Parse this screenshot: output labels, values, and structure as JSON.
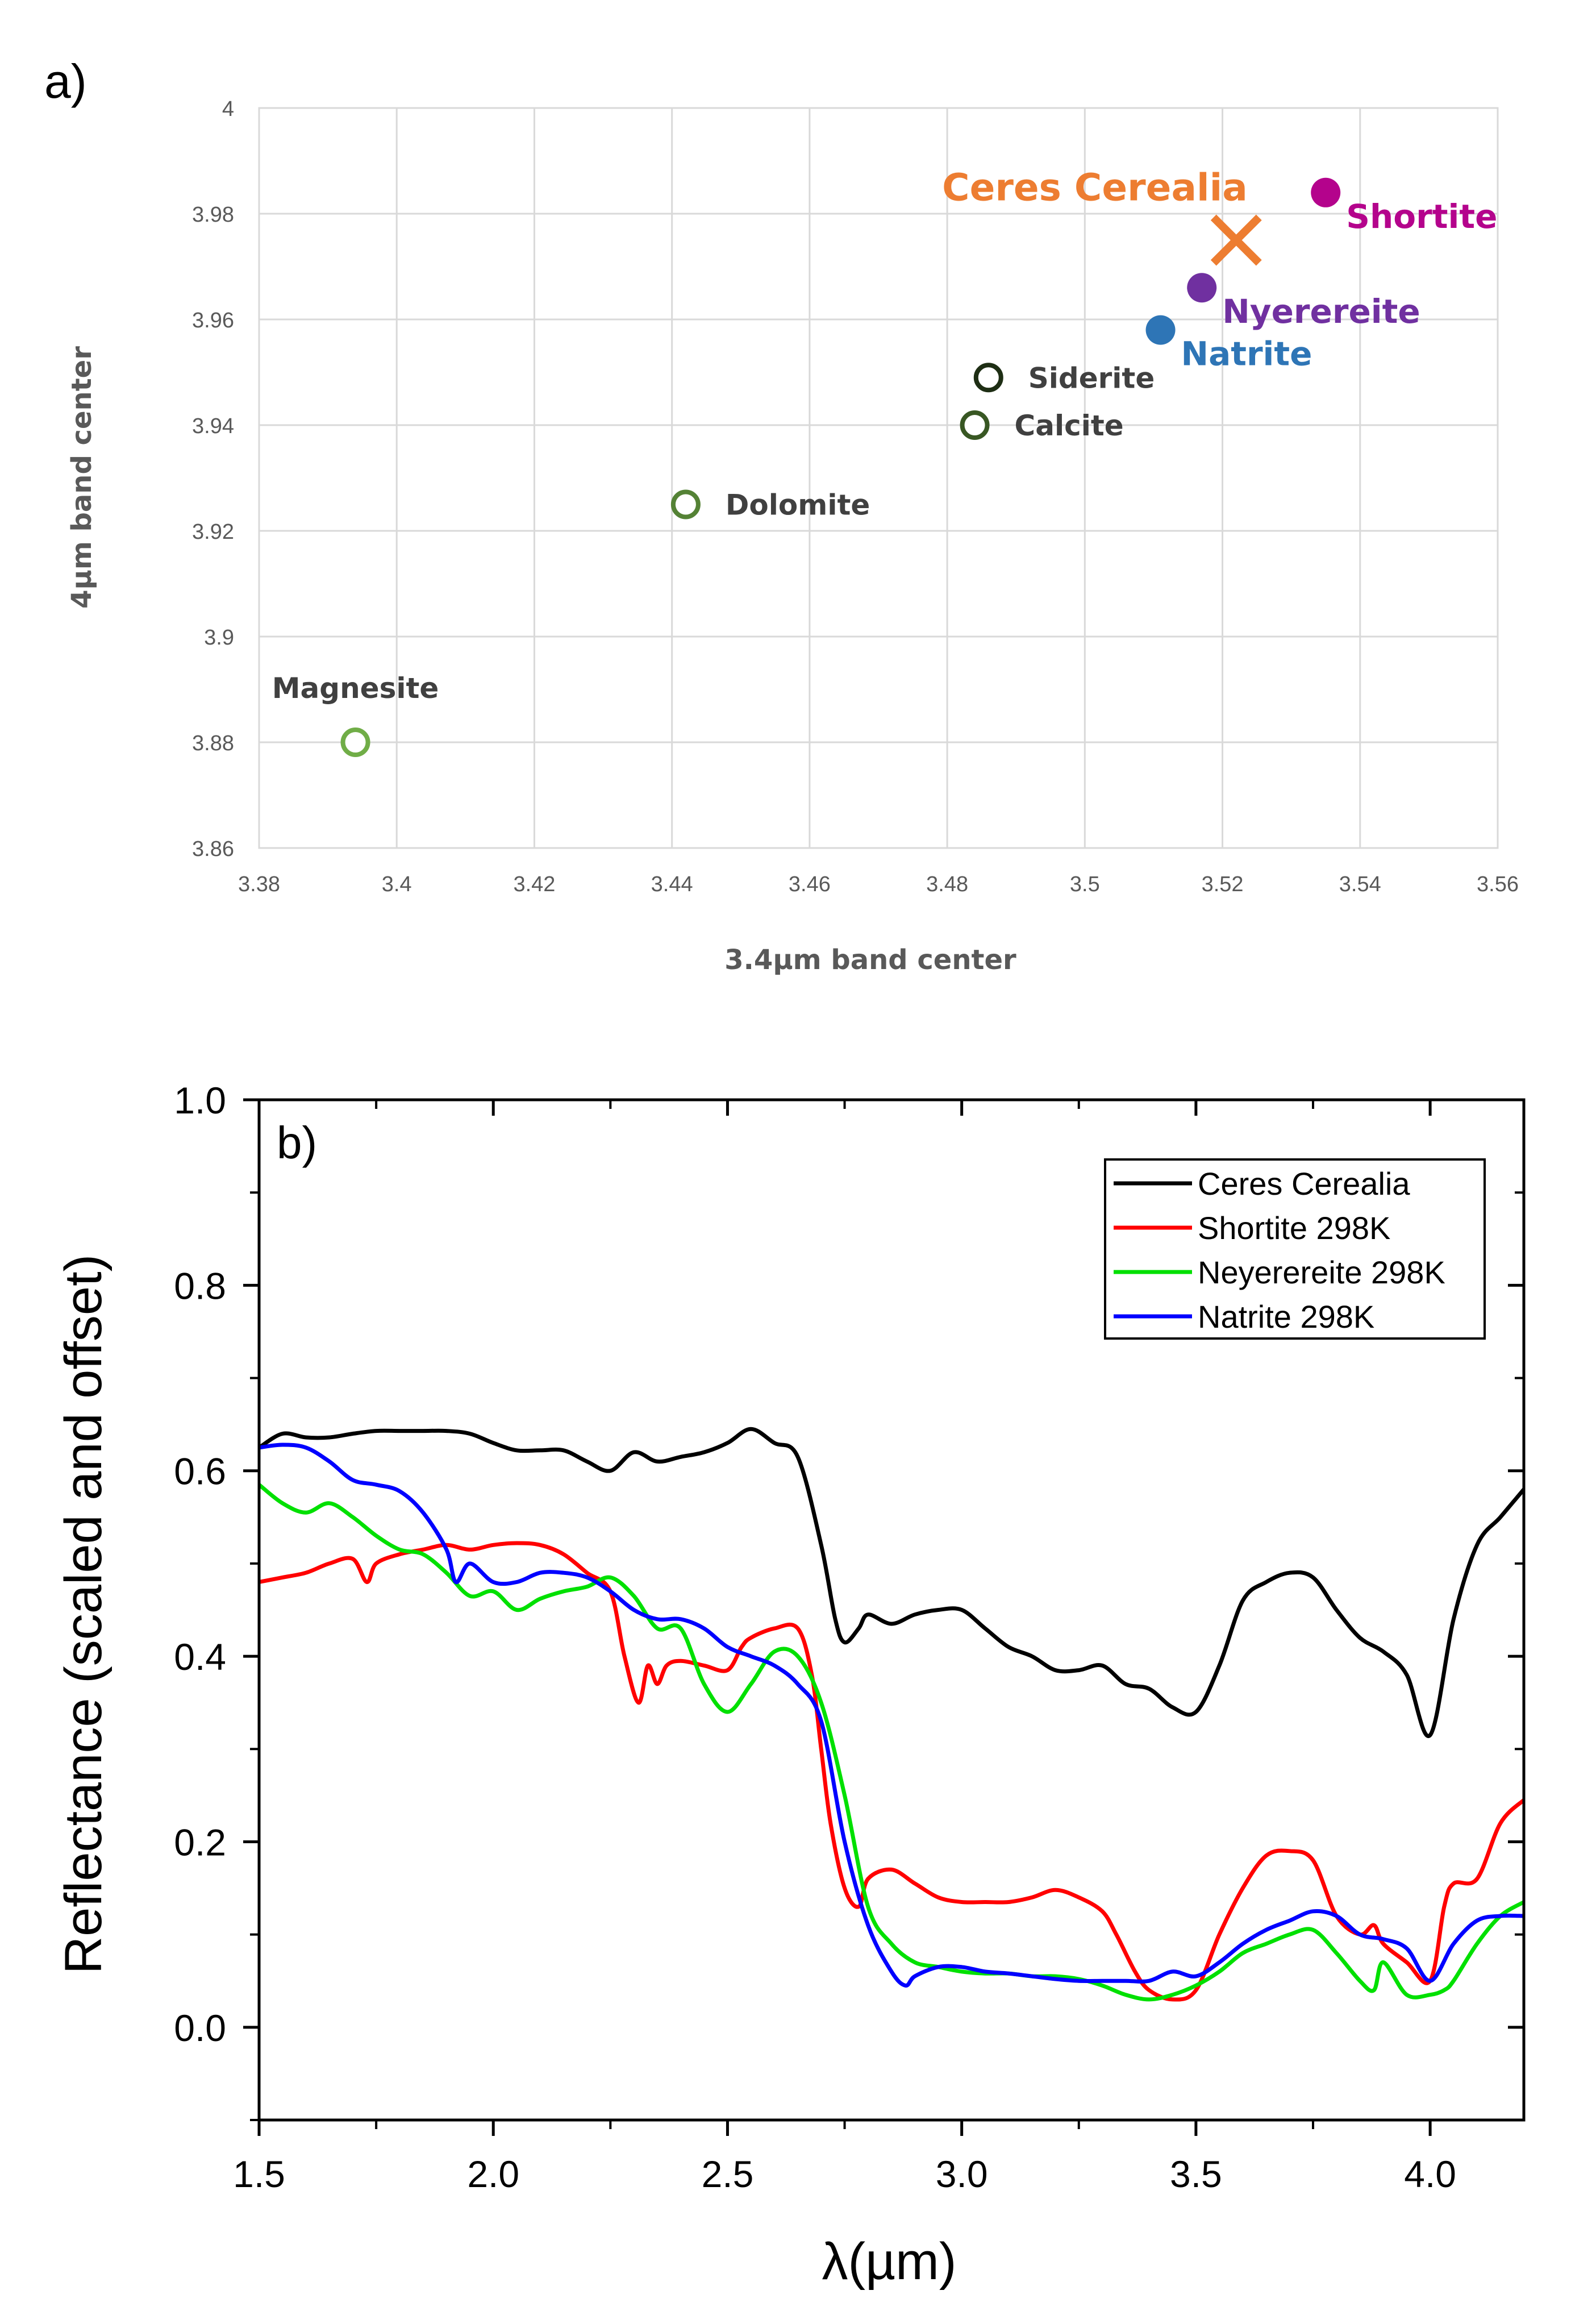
{
  "chart_data": [
    {
      "type": "scatter",
      "panel_label": "a)",
      "title": "",
      "xlabel": "3.4µm band center",
      "ylabel": "4µm band center",
      "xlim": [
        3.38,
        3.56
      ],
      "ylim": [
        3.86,
        4.0
      ],
      "grid": true,
      "x_ticks": [
        {
          "value": 3.38,
          "label": "3.38"
        },
        {
          "value": 3.4,
          "label": "3.4"
        },
        {
          "value": 3.42,
          "label": "3.42"
        },
        {
          "value": 3.44,
          "label": "3.44"
        },
        {
          "value": 3.46,
          "label": "3.46"
        },
        {
          "value": 3.48,
          "label": "3.48"
        },
        {
          "value": 3.5,
          "label": "3.5"
        },
        {
          "value": 3.52,
          "label": "3.52"
        },
        {
          "value": 3.54,
          "label": "3.54"
        },
        {
          "value": 3.56,
          "label": "3.56"
        }
      ],
      "y_ticks": [
        {
          "value": 3.86,
          "label": "3.86"
        },
        {
          "value": 3.88,
          "label": "3.88"
        },
        {
          "value": 3.9,
          "label": "3.9"
        },
        {
          "value": 3.92,
          "label": "3.92"
        },
        {
          "value": 3.94,
          "label": "3.94"
        },
        {
          "value": 3.96,
          "label": "3.96"
        },
        {
          "value": 3.98,
          "label": "3.98"
        },
        {
          "value": 4.0,
          "label": "4"
        }
      ],
      "points": [
        {
          "name": "Magnesite",
          "x": 3.394,
          "y": 3.88,
          "marker": "open-circle",
          "color": "#70AD47",
          "label_color": "#404040",
          "label_pos": "above"
        },
        {
          "name": "Dolomite",
          "x": 3.442,
          "y": 3.925,
          "marker": "open-circle",
          "color": "#548235",
          "label_color": "#404040",
          "label_pos": "right"
        },
        {
          "name": "Calcite",
          "x": 3.484,
          "y": 3.94,
          "marker": "open-circle",
          "color": "#385723",
          "label_color": "#404040",
          "label_pos": "right"
        },
        {
          "name": "Siderite",
          "x": 3.486,
          "y": 3.949,
          "marker": "open-circle",
          "color": "#1E2E14",
          "label_color": "#404040",
          "label_pos": "right"
        },
        {
          "name": "Natrite",
          "x": 3.511,
          "y": 3.958,
          "marker": "filled-circle",
          "color": "#2E75B6",
          "label_color": "#2E75B6",
          "label_pos": "lower-right"
        },
        {
          "name": "Nyerereite",
          "x": 3.517,
          "y": 3.966,
          "marker": "filled-circle",
          "color": "#7030A0",
          "label_color": "#7030A0",
          "label_pos": "lower-right"
        },
        {
          "name": "Ceres Cerealia",
          "x": 3.522,
          "y": 3.975,
          "marker": "cross",
          "color": "#ED7D31",
          "label_color": "#ED7D31",
          "label_pos": "upper-left"
        },
        {
          "name": "Shortite",
          "x": 3.535,
          "y": 3.984,
          "marker": "filled-circle",
          "color": "#B4038C",
          "label_color": "#B4038C",
          "label_pos": "lower-right"
        }
      ]
    },
    {
      "type": "line",
      "panel_label": "b)",
      "title": "",
      "xlabel": "λ(µm)",
      "ylabel": "Reflectance (scaled and offset)",
      "xlim": [
        1.5,
        4.2
      ],
      "ylim": [
        -0.1,
        1.0
      ],
      "grid": false,
      "legend_position": "top-right",
      "x_ticks": [
        {
          "value": 1.5,
          "label": "1.5"
        },
        {
          "value": 2.0,
          "label": "2.0"
        },
        {
          "value": 2.5,
          "label": "2.5"
        },
        {
          "value": 3.0,
          "label": "3.0"
        },
        {
          "value": 3.5,
          "label": "3.5"
        },
        {
          "value": 4.0,
          "label": "4.0"
        }
      ],
      "y_ticks": [
        {
          "value": 0.0,
          "label": "0.0"
        },
        {
          "value": 0.2,
          "label": "0.2"
        },
        {
          "value": 0.4,
          "label": "0.4"
        },
        {
          "value": 0.6,
          "label": "0.6"
        },
        {
          "value": 0.8,
          "label": "0.8"
        },
        {
          "value": 1.0,
          "label": "1.0"
        }
      ],
      "series": [
        {
          "name": "Ceres Cerealia",
          "color": "#000000",
          "x": [
            1.5,
            1.55,
            1.6,
            1.65,
            1.7,
            1.75,
            1.8,
            1.85,
            1.9,
            1.95,
            2.0,
            2.05,
            2.1,
            2.15,
            2.2,
            2.25,
            2.3,
            2.35,
            2.4,
            2.45,
            2.5,
            2.55,
            2.6,
            2.65,
            2.7,
            2.73,
            2.75,
            2.78,
            2.8,
            2.85,
            2.9,
            2.95,
            3.0,
            3.05,
            3.1,
            3.15,
            3.2,
            3.25,
            3.3,
            3.35,
            3.4,
            3.45,
            3.5,
            3.55,
            3.6,
            3.65,
            3.7,
            3.75,
            3.8,
            3.85,
            3.9,
            3.95,
            4.0,
            4.05,
            4.1,
            4.15,
            4.2
          ],
          "y": [
            0.625,
            0.64,
            0.636,
            0.636,
            0.64,
            0.643,
            0.643,
            0.643,
            0.643,
            0.64,
            0.63,
            0.622,
            0.622,
            0.622,
            0.61,
            0.6,
            0.62,
            0.61,
            0.615,
            0.62,
            0.63,
            0.645,
            0.63,
            0.615,
            0.52,
            0.44,
            0.415,
            0.43,
            0.445,
            0.435,
            0.445,
            0.45,
            0.45,
            0.43,
            0.41,
            0.4,
            0.385,
            0.385,
            0.39,
            0.37,
            0.365,
            0.345,
            0.34,
            0.39,
            0.46,
            0.48,
            0.49,
            0.485,
            0.45,
            0.42,
            0.405,
            0.38,
            0.315,
            0.44,
            0.52,
            0.55,
            0.58
          ]
        },
        {
          "name": "Shortite 298K",
          "color": "#FF0000",
          "x": [
            1.5,
            1.55,
            1.6,
            1.65,
            1.7,
            1.73,
            1.75,
            1.8,
            1.85,
            1.9,
            1.95,
            2.0,
            2.05,
            2.1,
            2.15,
            2.2,
            2.25,
            2.28,
            2.31,
            2.33,
            2.35,
            2.37,
            2.4,
            2.45,
            2.5,
            2.53,
            2.55,
            2.6,
            2.65,
            2.68,
            2.7,
            2.72,
            2.75,
            2.78,
            2.8,
            2.85,
            2.9,
            2.95,
            3.0,
            3.05,
            3.1,
            3.15,
            3.2,
            3.25,
            3.3,
            3.33,
            3.37,
            3.4,
            3.45,
            3.5,
            3.55,
            3.6,
            3.65,
            3.7,
            3.75,
            3.8,
            3.85,
            3.88,
            3.9,
            3.95,
            4.0,
            4.03,
            4.05,
            4.1,
            4.15,
            4.2
          ],
          "y": [
            0.48,
            0.485,
            0.49,
            0.5,
            0.505,
            0.48,
            0.5,
            0.51,
            0.515,
            0.52,
            0.515,
            0.52,
            0.522,
            0.52,
            0.51,
            0.49,
            0.47,
            0.4,
            0.35,
            0.39,
            0.37,
            0.39,
            0.395,
            0.39,
            0.385,
            0.41,
            0.42,
            0.43,
            0.43,
            0.38,
            0.3,
            0.22,
            0.15,
            0.13,
            0.16,
            0.17,
            0.155,
            0.14,
            0.135,
            0.135,
            0.135,
            0.14,
            0.148,
            0.14,
            0.125,
            0.1,
            0.06,
            0.04,
            0.03,
            0.04,
            0.1,
            0.15,
            0.185,
            0.19,
            0.18,
            0.12,
            0.1,
            0.11,
            0.09,
            0.07,
            0.05,
            0.13,
            0.155,
            0.16,
            0.22,
            0.245
          ]
        },
        {
          "name": "Neyerereite 298K",
          "color": "#00E000",
          "x": [
            1.5,
            1.55,
            1.6,
            1.65,
            1.7,
            1.75,
            1.8,
            1.85,
            1.9,
            1.95,
            2.0,
            2.05,
            2.1,
            2.15,
            2.2,
            2.25,
            2.3,
            2.35,
            2.4,
            2.45,
            2.5,
            2.55,
            2.6,
            2.65,
            2.7,
            2.75,
            2.8,
            2.85,
            2.9,
            2.95,
            3.0,
            3.05,
            3.1,
            3.15,
            3.2,
            3.25,
            3.3,
            3.35,
            3.4,
            3.45,
            3.5,
            3.55,
            3.6,
            3.65,
            3.7,
            3.75,
            3.8,
            3.85,
            3.88,
            3.9,
            3.95,
            4.0,
            4.03,
            4.05,
            4.1,
            4.15,
            4.2
          ],
          "y": [
            0.585,
            0.565,
            0.555,
            0.565,
            0.55,
            0.53,
            0.515,
            0.51,
            0.49,
            0.465,
            0.47,
            0.45,
            0.462,
            0.47,
            0.475,
            0.485,
            0.465,
            0.43,
            0.43,
            0.37,
            0.34,
            0.37,
            0.405,
            0.4,
            0.35,
            0.25,
            0.13,
            0.09,
            0.07,
            0.065,
            0.06,
            0.058,
            0.058,
            0.055,
            0.055,
            0.052,
            0.045,
            0.035,
            0.03,
            0.035,
            0.045,
            0.06,
            0.08,
            0.09,
            0.1,
            0.105,
            0.08,
            0.05,
            0.04,
            0.07,
            0.035,
            0.035,
            0.04,
            0.05,
            0.09,
            0.12,
            0.135
          ]
        },
        {
          "name": "Natrite 298K",
          "color": "#0000FF",
          "x": [
            1.5,
            1.55,
            1.6,
            1.65,
            1.7,
            1.75,
            1.8,
            1.85,
            1.9,
            1.92,
            1.95,
            2.0,
            2.05,
            2.1,
            2.15,
            2.2,
            2.25,
            2.3,
            2.35,
            2.4,
            2.45,
            2.5,
            2.55,
            2.6,
            2.65,
            2.7,
            2.75,
            2.8,
            2.85,
            2.88,
            2.9,
            2.95,
            3.0,
            3.05,
            3.1,
            3.15,
            3.2,
            3.25,
            3.3,
            3.35,
            3.4,
            3.45,
            3.5,
            3.55,
            3.6,
            3.65,
            3.7,
            3.75,
            3.8,
            3.85,
            3.9,
            3.95,
            4.0,
            4.05,
            4.1,
            4.15,
            4.2
          ],
          "y": [
            0.625,
            0.628,
            0.625,
            0.61,
            0.59,
            0.585,
            0.578,
            0.555,
            0.515,
            0.48,
            0.5,
            0.48,
            0.48,
            0.49,
            0.49,
            0.485,
            0.47,
            0.45,
            0.44,
            0.44,
            0.43,
            0.41,
            0.4,
            0.39,
            0.37,
            0.33,
            0.2,
            0.11,
            0.06,
            0.045,
            0.055,
            0.065,
            0.065,
            0.06,
            0.058,
            0.055,
            0.052,
            0.05,
            0.05,
            0.05,
            0.05,
            0.06,
            0.055,
            0.07,
            0.09,
            0.105,
            0.115,
            0.125,
            0.12,
            0.1,
            0.095,
            0.085,
            0.05,
            0.09,
            0.115,
            0.12,
            0.12
          ]
        }
      ]
    }
  ]
}
